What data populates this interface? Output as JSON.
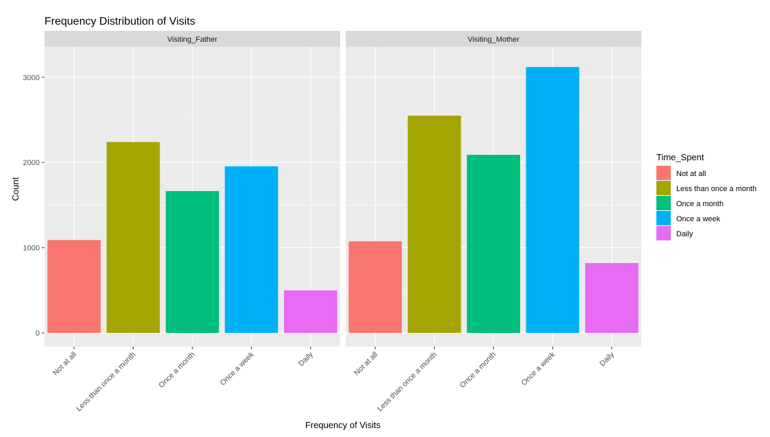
{
  "chart_data": {
    "type": "bar",
    "title": "Frequency Distribution of Visits",
    "xlabel": "Frequency of Visits",
    "ylabel": "Count",
    "categories": [
      "Not at all",
      "Less than once a month",
      "Once a month",
      "Once a week",
      "Daily"
    ],
    "y_ticks": [
      0,
      1000,
      2000,
      3000
    ],
    "y_tick_labels": [
      "0",
      "1000",
      "2000",
      "3000"
    ],
    "ylim": [
      -160,
      3360
    ],
    "grid": true,
    "facets": [
      {
        "label": "Visiting_Father",
        "values": [
          1090,
          2240,
          1665,
          1955,
          500
        ]
      },
      {
        "label": "Visiting_Mother",
        "values": [
          1075,
          2550,
          2090,
          3120,
          820
        ]
      }
    ],
    "legend": {
      "title": "Time_Spent",
      "position": "right",
      "items": [
        {
          "label": "Not at all",
          "color": "#F8766D"
        },
        {
          "label": "Less than once a month",
          "color": "#A3A500"
        },
        {
          "label": "Once a month",
          "color": "#00BF7D"
        },
        {
          "label": "Once a week",
          "color": "#00B0F6"
        },
        {
          "label": "Daily",
          "color": "#E76BF3"
        }
      ]
    },
    "colors": {
      "panel_background": "#EBEBEB",
      "strip_background": "#D9D9D9",
      "grid_major": "#FFFFFF"
    }
  }
}
